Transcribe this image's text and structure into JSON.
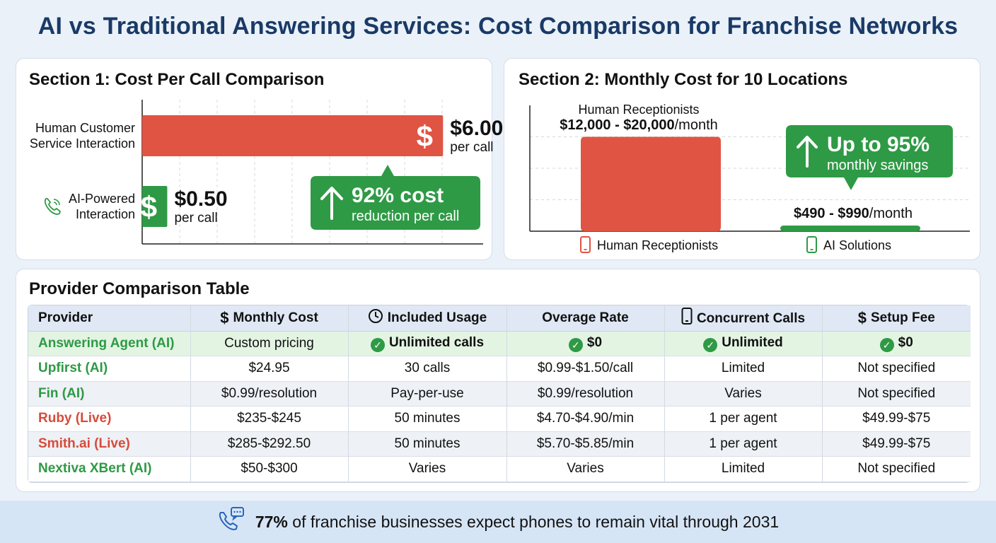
{
  "title": "AI vs Traditional Answering Services: Cost Comparison for Franchise Networks",
  "section1": {
    "title": "Section 1: Cost Per Call Comparison",
    "callout_main": "92% cost",
    "callout_sub": "reduction per call"
  },
  "section2": {
    "title": "Section 2: Monthly Cost for 10 Locations",
    "human_bar_label": "Human Receptionists",
    "human_bar_range": "$12,000 - $20,000",
    "human_bar_unit": "/month",
    "ai_bar_range": "$490 - $990",
    "ai_bar_unit": "/month",
    "callout_main": "Up to 95%",
    "callout_sub": "monthly savings",
    "legend_human": "Human Receptionists",
    "legend_ai": "AI Solutions"
  },
  "chart_data": [
    {
      "type": "bar",
      "orientation": "horizontal",
      "title": "Section 1: Cost Per Call Comparison",
      "categories": [
        "Human Customer Service Interaction",
        "AI-Powered Interaction"
      ],
      "category_lines": [
        [
          "Human Customer",
          "Service Interaction"
        ],
        [
          "AI-Powered",
          "Interaction"
        ]
      ],
      "values": [
        6.0,
        0.5
      ],
      "value_labels": [
        "$6.00",
        "$0.50"
      ],
      "unit_label": "per call",
      "colors": [
        "#e05443",
        "#2e9a45"
      ],
      "xlim": [
        0,
        6.8
      ],
      "grid": true
    },
    {
      "type": "bar",
      "title": "Section 2: Monthly Cost for 10 Locations",
      "categories": [
        "Human Receptionists",
        "AI Solutions"
      ],
      "ranges": [
        [
          12000,
          20000
        ],
        [
          490,
          990
        ]
      ],
      "values": [
        12000,
        490
      ],
      "colors": [
        "#e05443",
        "#2e9a45"
      ],
      "ylim": [
        0,
        16000
      ],
      "grid": true
    }
  ],
  "table": {
    "title": "Provider Comparison Table",
    "headers": [
      "Provider",
      "Monthly Cost",
      "Included Usage",
      "Overage Rate",
      "Concurrent Calls",
      "Setup Fee"
    ],
    "header_icons": [
      "",
      "dollar-icon",
      "clock-icon",
      "",
      "phone-icon",
      "dollar-icon"
    ],
    "rows": [
      {
        "provider": "Answering Agent (AI)",
        "kind": "ai",
        "cells": [
          "Custom pricing",
          "Unlimited calls",
          "$0",
          "Unlimited",
          "$0"
        ],
        "checks": [
          false,
          true,
          true,
          true,
          true
        ]
      },
      {
        "provider": "Upfirst (AI)",
        "kind": "ai",
        "cells": [
          "$24.95",
          "30 calls",
          "$0.99-$1.50/call",
          "Limited",
          "Not specified"
        ],
        "checks": [
          false,
          false,
          false,
          false,
          false
        ]
      },
      {
        "provider": "Fin (AI)",
        "kind": "ai",
        "cells": [
          "$0.99/resolution",
          "Pay-per-use",
          "$0.99/resolution",
          "Varies",
          "Not specified"
        ],
        "checks": [
          false,
          false,
          false,
          false,
          false
        ]
      },
      {
        "provider": "Ruby (Live)",
        "kind": "live",
        "cells": [
          "$235-$245",
          "50 minutes",
          "$4.70-$4.90/min",
          "1 per agent",
          "$49.99-$75"
        ],
        "checks": [
          false,
          false,
          false,
          false,
          false
        ]
      },
      {
        "provider": "Smith.ai (Live)",
        "kind": "live",
        "cells": [
          "$285-$292.50",
          "50 minutes",
          "$5.70-$5.85/min",
          "1 per agent",
          "$49.99-$75"
        ],
        "checks": [
          false,
          false,
          false,
          false,
          false
        ]
      },
      {
        "provider": "Nextiva XBert (AI)",
        "kind": "ai",
        "cells": [
          "$50-$300",
          "Varies",
          "Varies",
          "Limited",
          "Not specified"
        ],
        "checks": [
          false,
          false,
          false,
          false,
          false
        ]
      }
    ]
  },
  "footer": {
    "highlight": "77%",
    "text": " of franchise businesses expect phones to remain vital through 2031"
  },
  "colors": {
    "red": "#e05443",
    "green": "#2e9a45",
    "title_blue": "#1a3a66"
  }
}
